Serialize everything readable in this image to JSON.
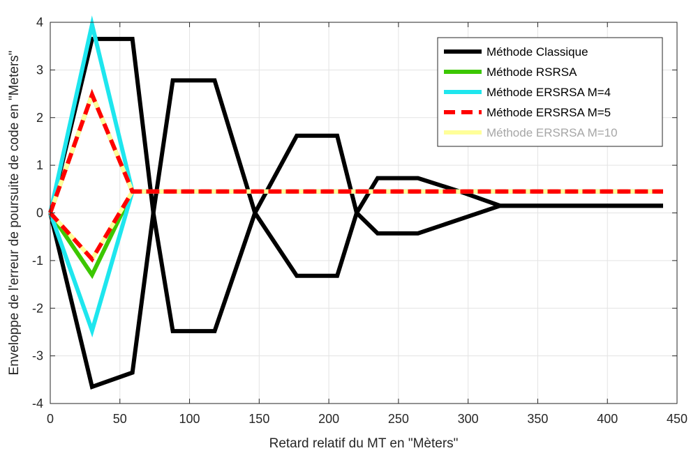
{
  "chart_data": {
    "type": "line",
    "title": "",
    "xlabel": "Retard relatif du MT en \"Mèters\"",
    "ylabel": "Enveloppe de l'erreur de poursuite de code en \"Meters\"",
    "xlim": [
      0,
      450
    ],
    "ylim": [
      -4,
      4
    ],
    "xticks": [
      0,
      50,
      100,
      150,
      200,
      250,
      300,
      350,
      400,
      450
    ],
    "yticks": [
      -4,
      -3,
      -2,
      -1,
      0,
      1,
      2,
      3,
      4
    ],
    "grid": true,
    "legend_position": "top-right",
    "series": [
      {
        "name": "Méthode Classique",
        "color": "#000000",
        "dash": "solid",
        "upper": [
          [
            0,
            0
          ],
          [
            30,
            3.65
          ],
          [
            59,
            3.65
          ],
          [
            74,
            0
          ],
          [
            88,
            2.78
          ],
          [
            118,
            2.78
          ],
          [
            147,
            0
          ],
          [
            177,
            1.62
          ],
          [
            206,
            1.62
          ],
          [
            220,
            0
          ],
          [
            235,
            0.73
          ],
          [
            264,
            0.73
          ],
          [
            294,
            0.45
          ],
          [
            323,
            0.15
          ],
          [
            440,
            0.15
          ]
        ],
        "lower": [
          [
            0,
            0
          ],
          [
            30,
            -3.65
          ],
          [
            59,
            -3.35
          ],
          [
            74,
            0
          ],
          [
            88,
            -2.48
          ],
          [
            118,
            -2.48
          ],
          [
            147,
            0
          ],
          [
            177,
            -1.32
          ],
          [
            206,
            -1.32
          ],
          [
            220,
            0
          ],
          [
            235,
            -0.43
          ],
          [
            264,
            -0.43
          ],
          [
            323,
            0.15
          ],
          [
            440,
            0.15
          ]
        ]
      },
      {
        "name": "Méthode RSRSA",
        "color": "#3cc700",
        "dash": "solid",
        "upper": [
          [
            0,
            0
          ],
          [
            30,
            2.48
          ],
          [
            59,
            0.45
          ],
          [
            440,
            0.45
          ]
        ],
        "lower": [
          [
            0,
            0
          ],
          [
            30,
            -1.3
          ],
          [
            59,
            0.45
          ],
          [
            440,
            0.45
          ]
        ]
      },
      {
        "name": "Méthode ERSRSA M=4",
        "color": "#1ee6ee",
        "dash": "solid",
        "upper": [
          [
            0,
            0
          ],
          [
            30,
            3.95
          ],
          [
            59,
            0.45
          ],
          [
            440,
            0.45
          ]
        ],
        "lower": [
          [
            0,
            0
          ],
          [
            30,
            -2.47
          ],
          [
            59,
            0.45
          ],
          [
            440,
            0.45
          ]
        ]
      },
      {
        "name": "Méthode ERSRSA M=5",
        "color": "#ff0000",
        "dash": "dashed",
        "upper": [
          [
            0,
            0
          ],
          [
            30,
            2.48
          ],
          [
            59,
            0.45
          ],
          [
            440,
            0.45
          ]
        ],
        "lower": [
          [
            0,
            0
          ],
          [
            30,
            -0.97
          ],
          [
            59,
            0.45
          ],
          [
            440,
            0.45
          ]
        ]
      },
      {
        "name": "Méthode ERSRSA M=10",
        "color": "#ffff99",
        "dash": "solid",
        "upper": [
          [
            0,
            0
          ],
          [
            30,
            2.48
          ],
          [
            59,
            0.45
          ],
          [
            440,
            0.45
          ]
        ],
        "lower": [
          [
            0,
            0
          ],
          [
            30,
            -0.97
          ],
          [
            59,
            0.45
          ],
          [
            440,
            0.45
          ]
        ]
      }
    ]
  }
}
